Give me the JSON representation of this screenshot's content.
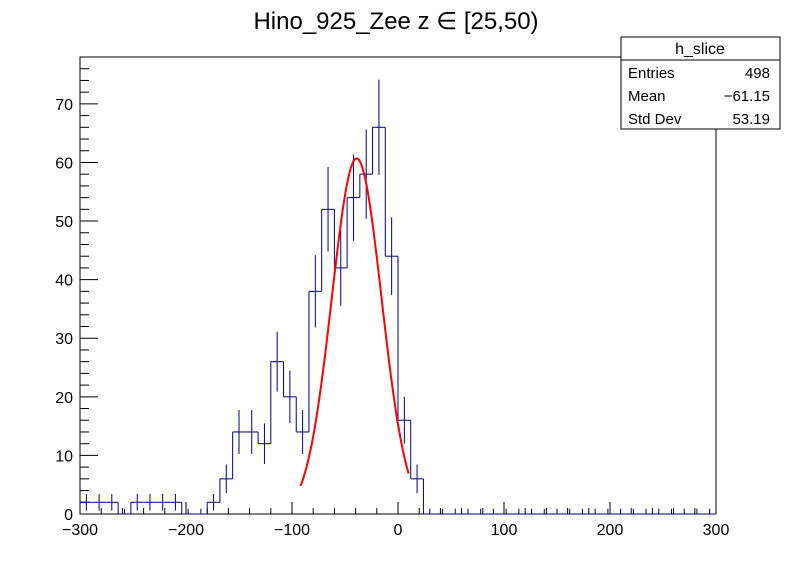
{
  "chart_data": {
    "type": "bar",
    "title": "Hino_925_Zee z  ∈ [25,50)",
    "xlabel": "",
    "ylabel": "",
    "xlim": [
      -300,
      300
    ],
    "ylim": [
      0,
      78
    ],
    "bin_width": 12,
    "x_ticks": [
      "−300",
      "−200",
      "−100",
      "0",
      "100",
      "200",
      "300"
    ],
    "y_ticks": [
      "0",
      "10",
      "20",
      "30",
      "40",
      "50",
      "60",
      "70"
    ],
    "histogram": {
      "name": "h_slice",
      "color": "#000080",
      "bins": [
        {
          "x": -300,
          "v": 2
        },
        {
          "x": -288,
          "v": 2
        },
        {
          "x": -276,
          "v": 2
        },
        {
          "x": -264,
          "v": 0
        },
        {
          "x": -252,
          "v": 2
        },
        {
          "x": -240,
          "v": 2
        },
        {
          "x": -228,
          "v": 2
        },
        {
          "x": -216,
          "v": 2
        },
        {
          "x": -204,
          "v": 0
        },
        {
          "x": -192,
          "v": 0
        },
        {
          "x": -180,
          "v": 2
        },
        {
          "x": -168,
          "v": 6
        },
        {
          "x": -156,
          "v": 14
        },
        {
          "x": -144,
          "v": 14
        },
        {
          "x": -132,
          "v": 12
        },
        {
          "x": -120,
          "v": 26
        },
        {
          "x": -108,
          "v": 20
        },
        {
          "x": -96,
          "v": 14
        },
        {
          "x": -84,
          "v": 38
        },
        {
          "x": -72,
          "v": 52
        },
        {
          "x": -60,
          "v": 42
        },
        {
          "x": -48,
          "v": 54
        },
        {
          "x": -36,
          "v": 58
        },
        {
          "x": -24,
          "v": 66
        },
        {
          "x": -12,
          "v": 44
        },
        {
          "x": 0,
          "v": 16
        },
        {
          "x": 12,
          "v": 6
        },
        {
          "x": 24,
          "v": 0
        },
        {
          "x": 36,
          "v": 0
        },
        {
          "x": 48,
          "v": 0
        },
        {
          "x": 60,
          "v": 0
        },
        {
          "x": 72,
          "v": 0
        },
        {
          "x": 84,
          "v": 0
        },
        {
          "x": 96,
          "v": 0
        },
        {
          "x": 108,
          "v": 0
        },
        {
          "x": 120,
          "v": 0
        },
        {
          "x": 132,
          "v": 0
        },
        {
          "x": 144,
          "v": 0
        },
        {
          "x": 156,
          "v": 0
        },
        {
          "x": 168,
          "v": 0
        },
        {
          "x": 180,
          "v": 0
        },
        {
          "x": 192,
          "v": 0
        },
        {
          "x": 204,
          "v": 0
        },
        {
          "x": 216,
          "v": 0
        },
        {
          "x": 228,
          "v": 0
        },
        {
          "x": 240,
          "v": 0
        },
        {
          "x": 252,
          "v": 0
        },
        {
          "x": 264,
          "v": 0
        },
        {
          "x": 276,
          "v": 0
        },
        {
          "x": 288,
          "v": 0
        }
      ]
    },
    "fit": {
      "type": "gaussian",
      "color": "#ff0000",
      "amplitude": 60.7,
      "mean": -39,
      "sigma": 23.5,
      "x_range": [
        -92,
        10
      ]
    },
    "stats_box": {
      "title": "h_slice",
      "rows": [
        {
          "label": "Entries",
          "value": "498"
        },
        {
          "label": "Mean",
          "value": "−61.15"
        },
        {
          "label": "Std Dev",
          "value": "53.19"
        }
      ]
    }
  }
}
